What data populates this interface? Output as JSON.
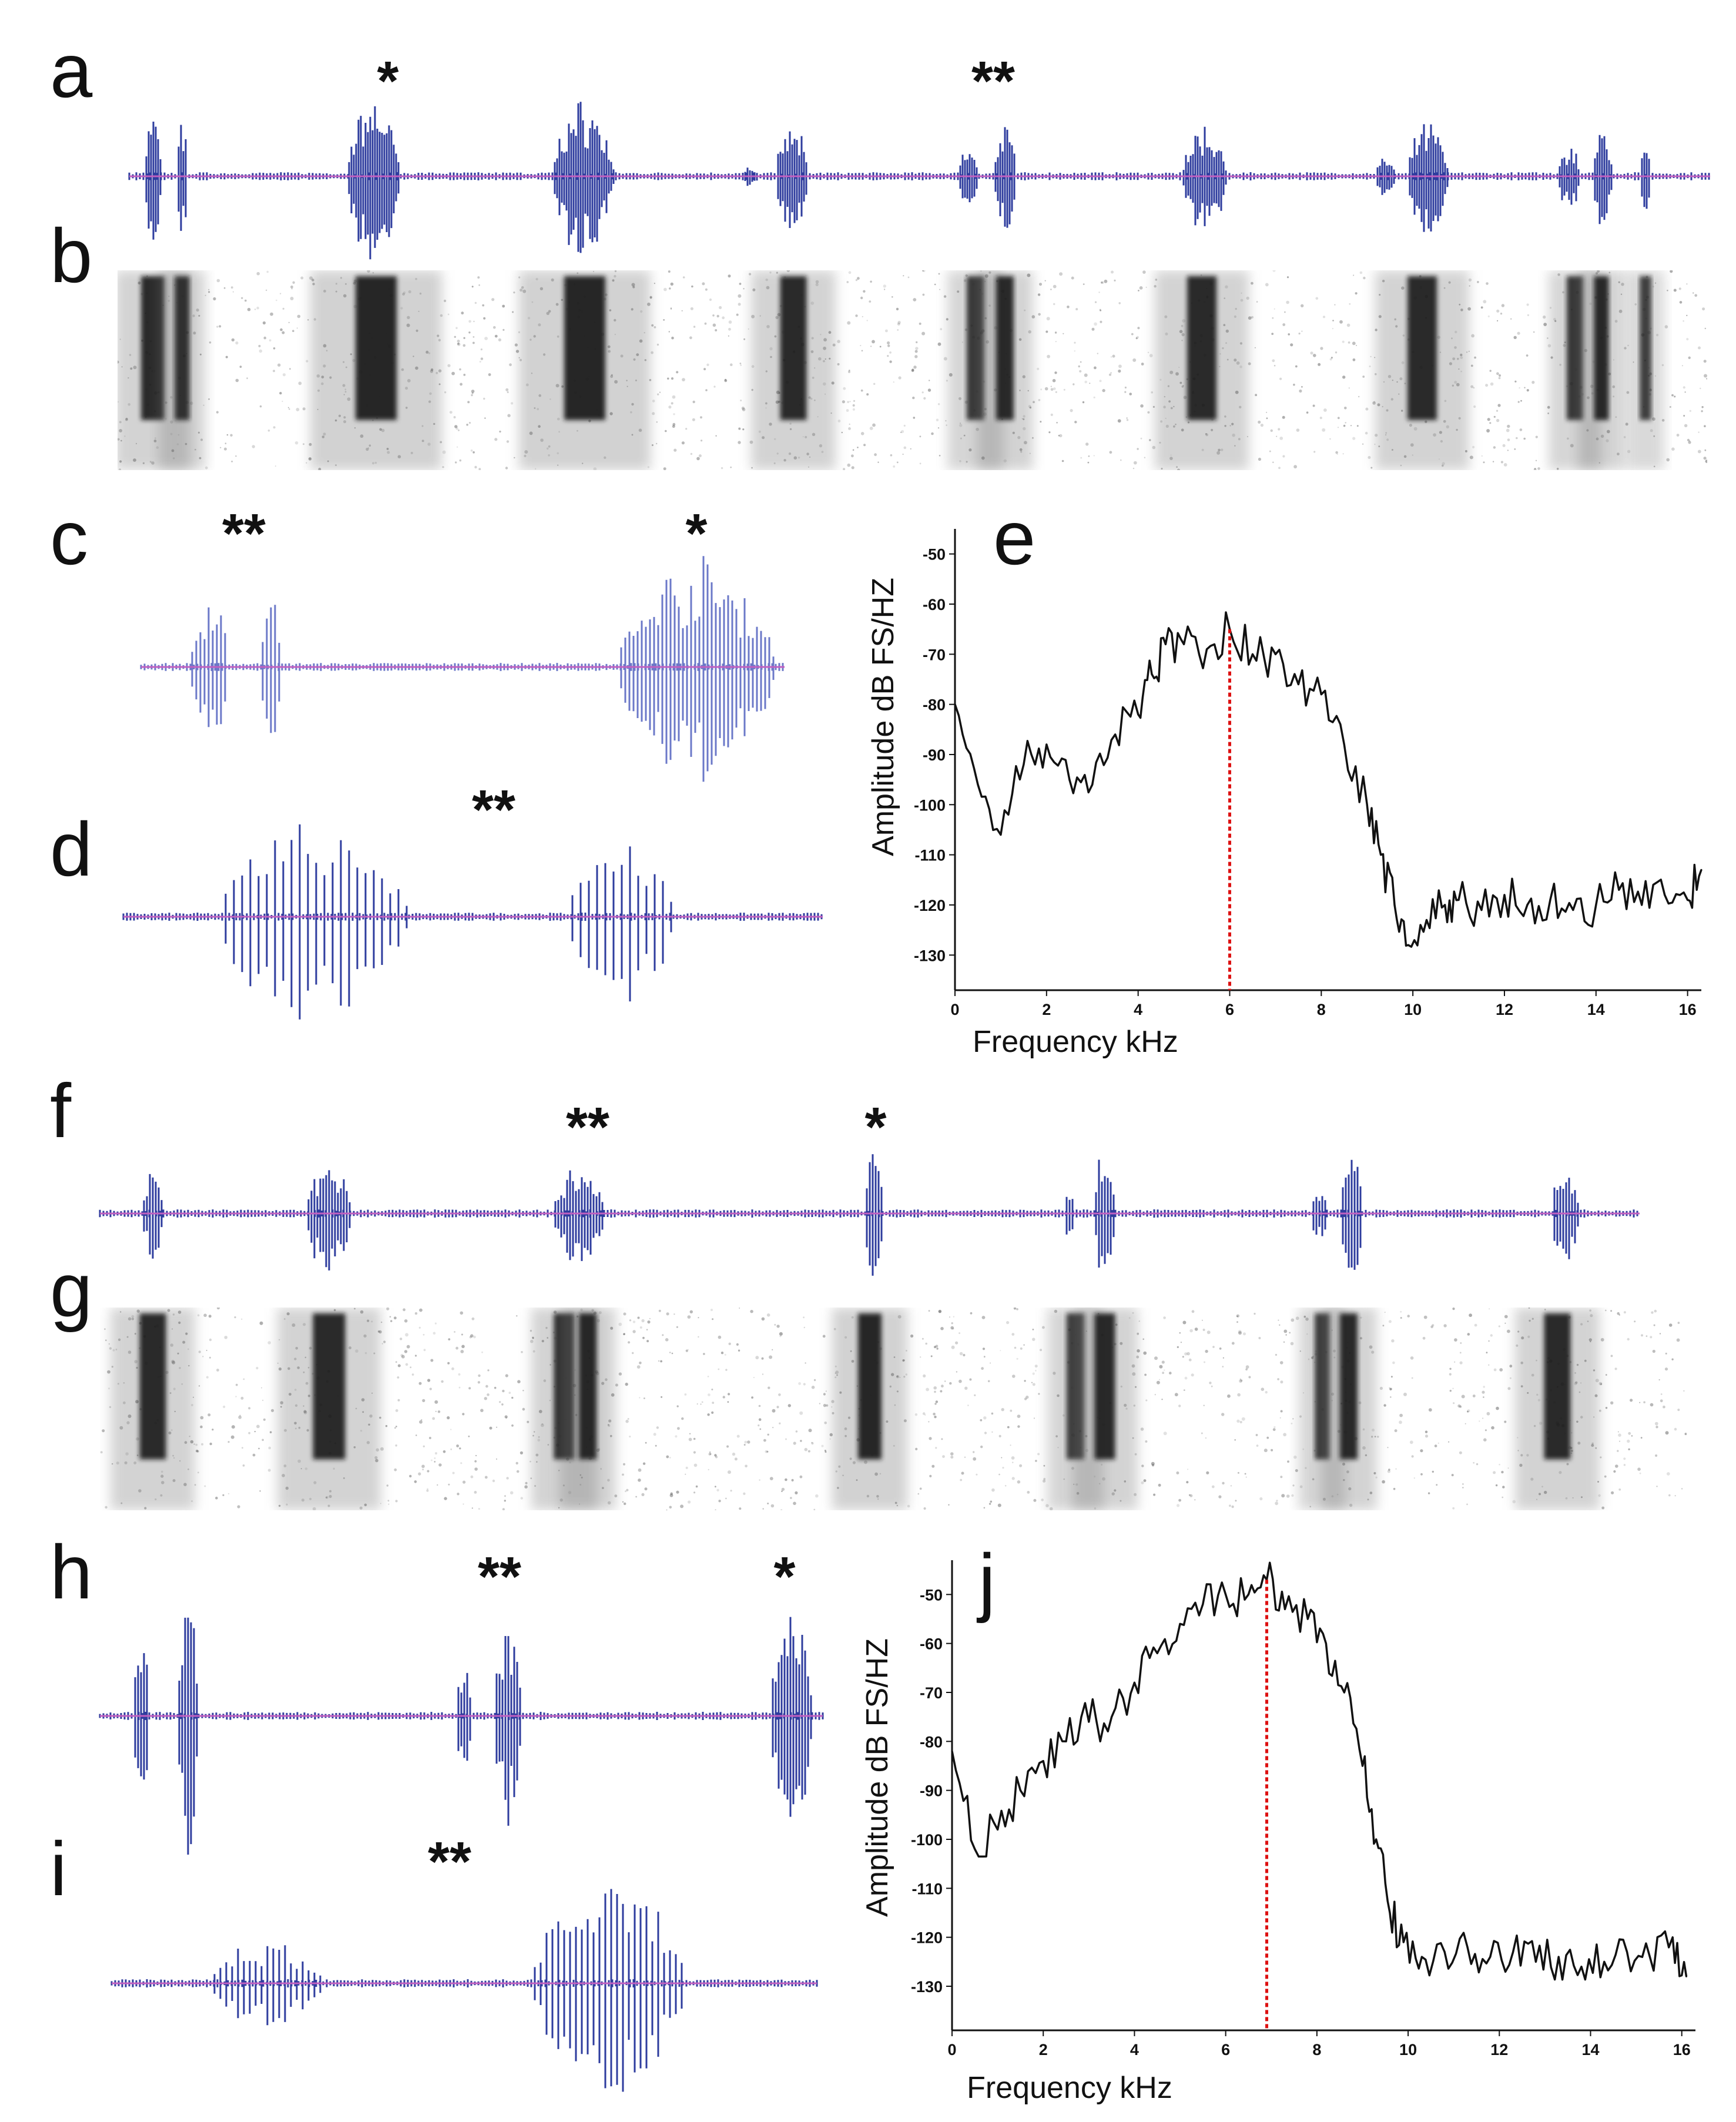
{
  "figure": {
    "panel_labels": [
      "a",
      "b",
      "c",
      "d",
      "e",
      "f",
      "g",
      "h",
      "i",
      "j"
    ],
    "annotations": {
      "single": "*",
      "double": "**"
    },
    "colors": {
      "waveform": "#2e3c9e",
      "waveform_light": "#6b78c8",
      "baseline": "#c060c0",
      "spectrum_line": "#111111",
      "peak_marker": "#dd1111",
      "spectrogram": "#1a1a1a"
    }
  },
  "chart_data": [
    {
      "panel": "e",
      "type": "line",
      "title": "",
      "xlabel": "Frequency kHz",
      "ylabel": "Amplitude dB FS/HZ",
      "xlim": [
        0,
        16.3
      ],
      "ylim": [
        -137,
        -45
      ],
      "xticks": [
        0,
        2,
        4,
        6,
        8,
        10,
        12,
        14,
        16
      ],
      "yticks": [
        -50,
        -60,
        -70,
        -80,
        -90,
        -100,
        -110,
        -120,
        -130
      ],
      "peak_frequency_khz": 6,
      "x": [
        0,
        0.5,
        1.0,
        1.5,
        2.0,
        2.5,
        3.0,
        3.5,
        4.0,
        4.3,
        4.6,
        5.0,
        5.5,
        6.0,
        6.5,
        7.0,
        7.5,
        8.0,
        8.5,
        9.0,
        9.3,
        9.6,
        9.9,
        10.3,
        10.7,
        11.0,
        11.5,
        12.0,
        12.5,
        13.0,
        13.5,
        14.0,
        14.5,
        15.0,
        15.5,
        16.0,
        16.3
      ],
      "y": [
        -80,
        -96,
        -106,
        -92,
        -88,
        -95,
        -96,
        -86,
        -82,
        -74,
        -68,
        -68,
        -69,
        -65,
        -70,
        -70,
        -76,
        -78,
        -88,
        -100,
        -110,
        -120,
        -128,
        -123,
        -120,
        -119,
        -121,
        -118,
        -120,
        -119,
        -121,
        -120,
        -117,
        -120,
        -118,
        -119,
        -113
      ]
    },
    {
      "panel": "j",
      "type": "line",
      "title": "",
      "xlabel": "Frequency kHz",
      "ylabel": "Amplitude dB FS/HZ",
      "xlim": [
        0,
        16.3
      ],
      "ylim": [
        -139,
        -43
      ],
      "xticks": [
        0,
        2,
        4,
        6,
        8,
        10,
        12,
        14,
        16
      ],
      "yticks": [
        -50,
        -60,
        -70,
        -80,
        -90,
        -100,
        -110,
        -120,
        -130
      ],
      "peak_frequency_khz": 6.9,
      "x": [
        0,
        0.5,
        1.0,
        1.5,
        2.0,
        2.5,
        3.0,
        3.5,
        4.0,
        4.5,
        5.0,
        5.5,
        6.0,
        6.5,
        6.9,
        7.3,
        7.8,
        8.2,
        8.6,
        9.0,
        9.3,
        9.6,
        9.9,
        10.3,
        10.8,
        11.3,
        11.8,
        12.3,
        12.8,
        13.3,
        13.8,
        14.3,
        14.8,
        15.3,
        15.8,
        16.1
      ],
      "y": [
        -82,
        -102,
        -98,
        -90,
        -84,
        -80,
        -76,
        -75,
        -68,
        -62,
        -56,
        -52,
        -50,
        -50,
        -47,
        -53,
        -55,
        -60,
        -70,
        -85,
        -100,
        -115,
        -121,
        -124,
        -123,
        -122,
        -124,
        -123,
        -125,
        -124,
        -126,
        -125,
        -123,
        -124,
        -120,
        -128
      ]
    }
  ]
}
